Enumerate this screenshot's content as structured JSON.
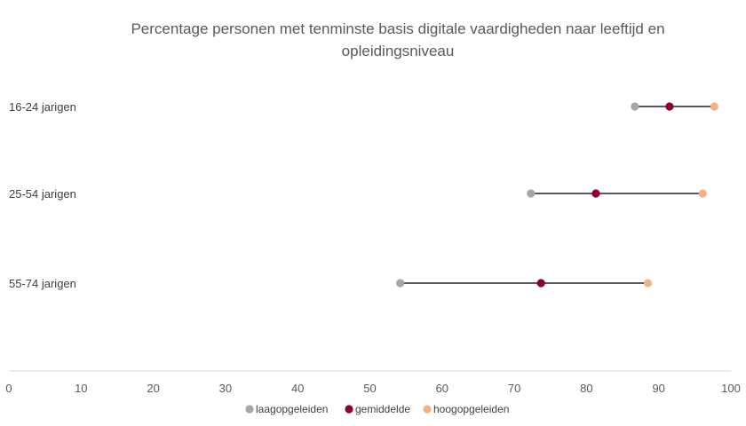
{
  "chart_data": {
    "type": "scatter",
    "title_lines": [
      "Percentage personen met tenminste basis digitale vaardigheden naar leeftijd en",
      "opleidingsniveau"
    ],
    "categories": [
      "16-24 jarigen",
      "25-54 jarigen",
      "55-74 jarigen"
    ],
    "series": [
      {
        "name": "laagopgeleiden",
        "color": "#a6a6a6",
        "values": [
          86.7,
          72.3,
          54.2
        ]
      },
      {
        "name": "gemiddelde",
        "color": "#8b0033",
        "values": [
          91.5,
          81.3,
          73.7
        ]
      },
      {
        "name": "hoogopgeleiden",
        "color": "#f4b183",
        "values": [
          97.7,
          96.1,
          88.5
        ]
      }
    ],
    "connector_color": "#595959",
    "xlim": [
      0,
      100
    ],
    "xticks": [
      "0",
      "10",
      "20",
      "30",
      "40",
      "50",
      "60",
      "70",
      "80",
      "90",
      "100"
    ],
    "grid": false,
    "legend_position": "bottom"
  }
}
